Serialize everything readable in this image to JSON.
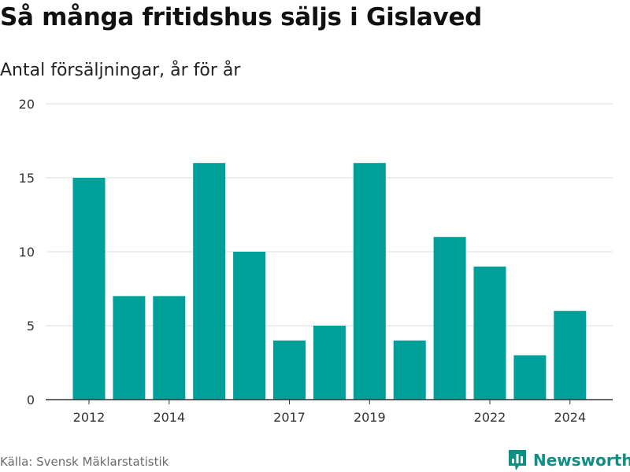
{
  "chart_data": {
    "type": "bar",
    "title": "Så många fritidshus säljs i Gislaved",
    "subtitle": "Antal försäljningar, år för år",
    "categories": [
      "2012",
      "2013",
      "2014",
      "2015",
      "2016",
      "2017",
      "2018",
      "2019",
      "2020",
      "2021",
      "2022",
      "2023",
      "2024"
    ],
    "values": [
      15,
      7,
      7,
      16,
      10,
      4,
      5,
      16,
      4,
      11,
      9,
      3,
      6
    ],
    "x_tick_labels": [
      "2012",
      "2014",
      "2017",
      "2019",
      "2022",
      "2024"
    ],
    "y_ticks": [
      0,
      5,
      10,
      15,
      20
    ],
    "ylim": [
      0,
      20
    ],
    "xlabel": "",
    "ylabel": "",
    "grid": true,
    "bar_color": "#00a09a",
    "source": "Källa: Svensk Mäklarstatistik"
  },
  "brand": {
    "name": "Newsworthy",
    "icon": "bar-chart-logo-icon",
    "color": "#0d8f84"
  }
}
